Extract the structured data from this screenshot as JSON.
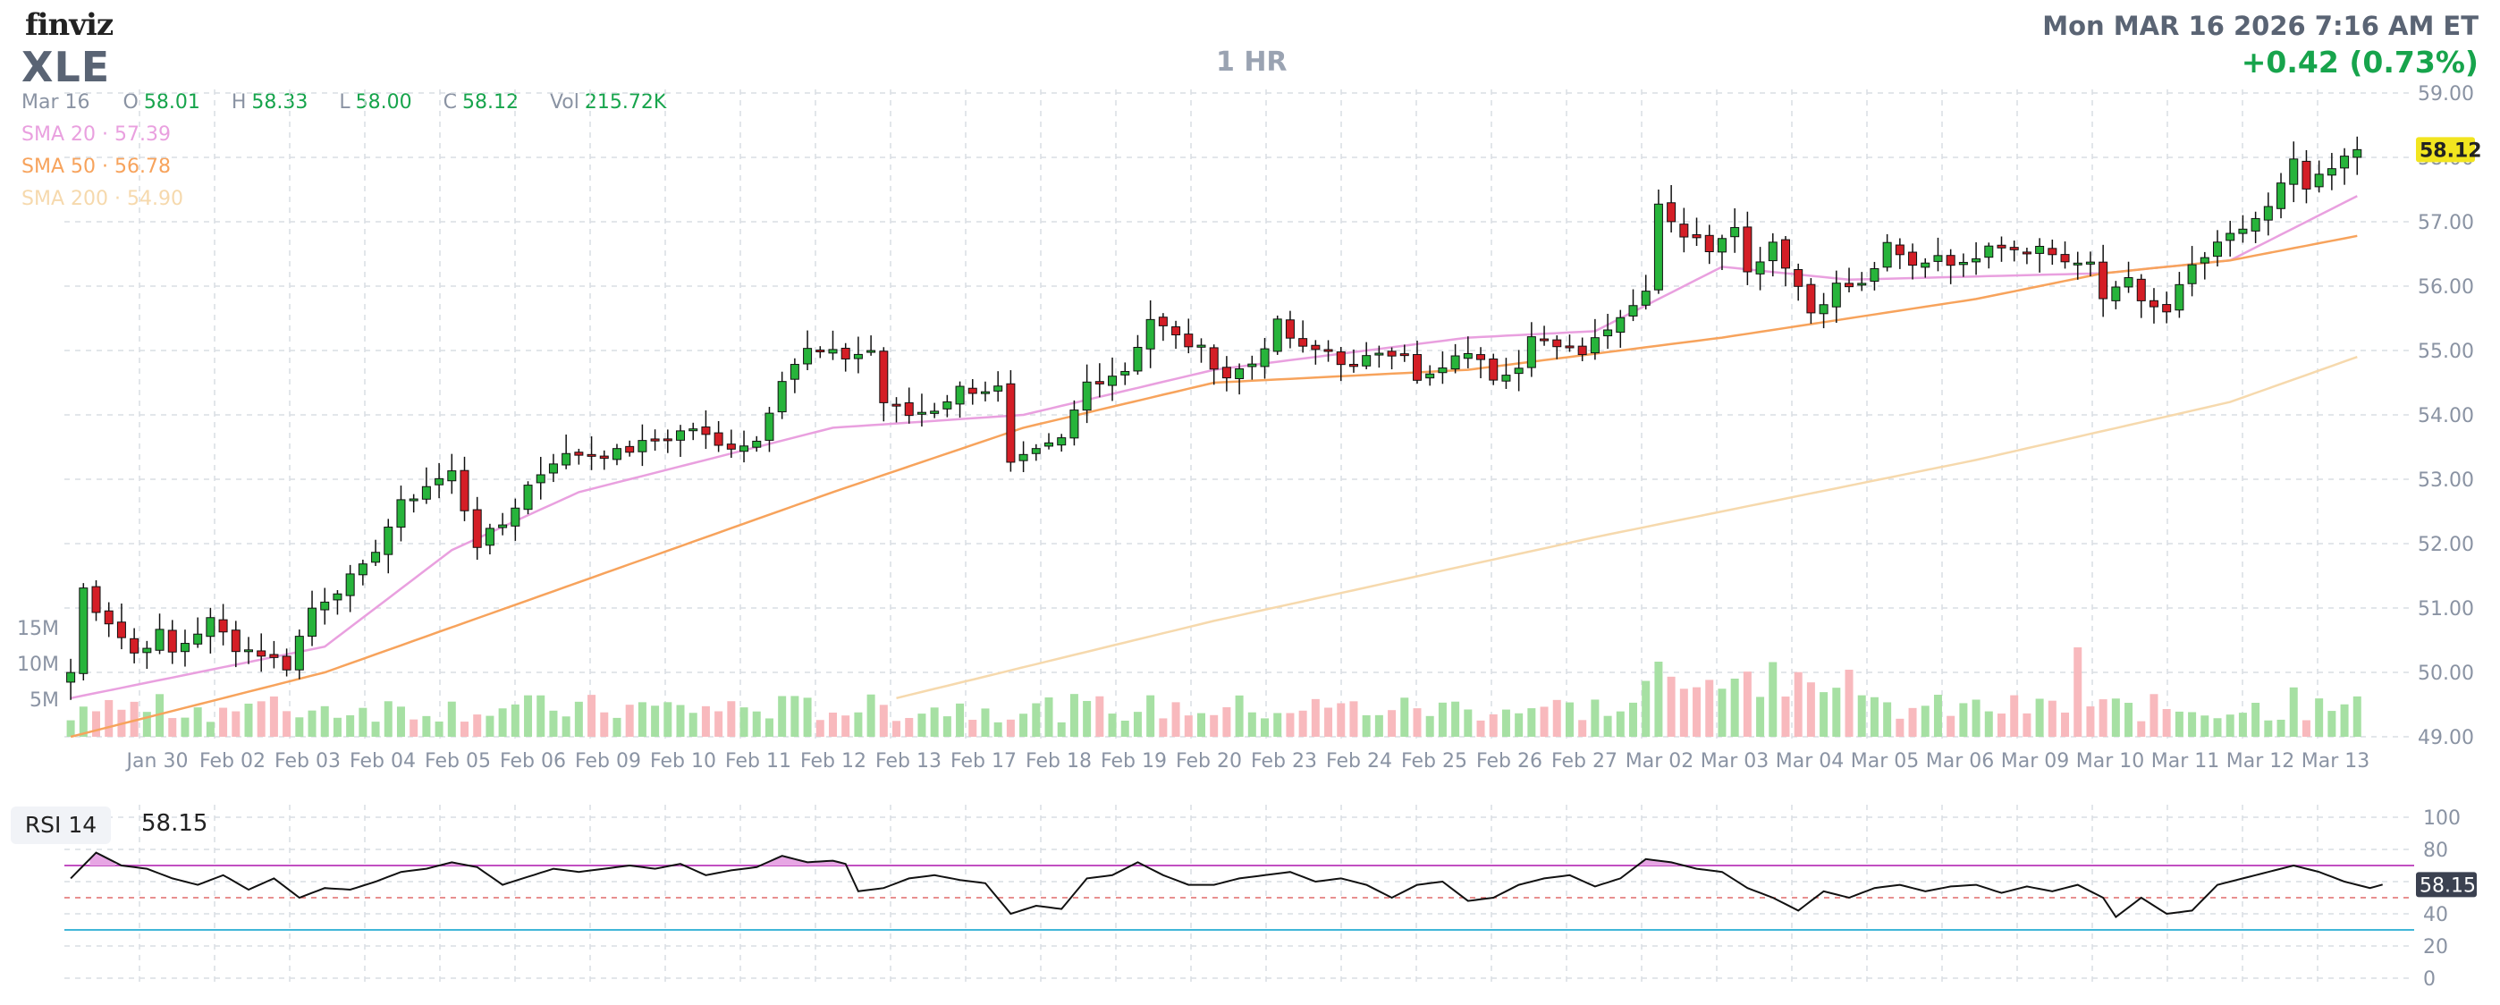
{
  "header": {
    "logo": "finviz",
    "ticker": "XLE",
    "timeframe": "1 HR",
    "datetime": "Mon MAR 16 2026 7:16 AM ET",
    "change": "+0.42 (0.73%)"
  },
  "ohlc": {
    "date": "Mar 16",
    "open_label": "O",
    "open": "58.01",
    "high_label": "H",
    "high": "58.33",
    "low_label": "L",
    "low": "58.00",
    "close_label": "C",
    "close": "58.12",
    "vol_label": "Vol",
    "vol": "215.72K"
  },
  "sma": [
    {
      "label": "SMA 20",
      "value": "57.39",
      "color": "#e9a0df"
    },
    {
      "label": "SMA 50",
      "value": "56.78",
      "color": "#f7a35c"
    },
    {
      "label": "SMA 200",
      "value": "54.90",
      "color": "#f6d9ad"
    }
  ],
  "rsi": {
    "label": "RSI 14",
    "value": "58.15"
  },
  "colors": {
    "up": "#27b43b",
    "down": "#d41e26",
    "vol_up": "#a6e0a3",
    "vol_down": "#f8b9bd",
    "grid": "#d9dde3",
    "axis_text": "#8a93a3",
    "rsi_line": "#111111",
    "rsi_overbought": "#c14fc1",
    "rsi_oversold": "#41b6d8",
    "last_price_bg": "#f2e51f"
  },
  "chart_data": [
    {
      "type": "candlestick",
      "title": "XLE",
      "ylim": [
        49.0,
        59.0
      ],
      "y_ticks": [
        "49.00",
        "50.00",
        "51.00",
        "52.00",
        "53.00",
        "54.00",
        "55.00",
        "56.00",
        "57.00",
        "58.00",
        "59.00"
      ],
      "x_labels": [
        "Jan 30",
        "Feb 02",
        "Feb 03",
        "Feb 04",
        "Feb 05",
        "Feb 06",
        "Feb 09",
        "Feb 10",
        "Feb 11",
        "Feb 12",
        "Feb 13",
        "Feb 17",
        "Feb 18",
        "Feb 19",
        "Feb 20",
        "Feb 23",
        "Feb 24",
        "Feb 25",
        "Feb 26",
        "Feb 27",
        "Mar 02",
        "Mar 03",
        "Mar 04",
        "Mar 05",
        "Mar 06",
        "Mar 09",
        "Mar 10",
        "Mar 11",
        "Mar 12",
        "Mar 13"
      ],
      "last_price": "58.12",
      "close_path": [
        [
          0,
          50.0
        ],
        [
          1,
          51.3
        ],
        [
          2,
          51.0
        ],
        [
          3,
          50.8
        ],
        [
          5,
          50.3
        ],
        [
          7,
          50.6
        ],
        [
          8,
          50.3
        ],
        [
          11,
          50.8
        ],
        [
          13,
          50.4
        ],
        [
          15,
          50.3
        ],
        [
          17,
          50.1
        ],
        [
          19,
          51.0
        ],
        [
          21,
          51.3
        ],
        [
          23,
          51.6
        ],
        [
          26,
          52.6
        ],
        [
          28,
          52.9
        ],
        [
          30,
          53.1
        ],
        [
          32,
          52.0
        ],
        [
          34,
          52.3
        ],
        [
          36,
          52.9
        ],
        [
          38,
          53.3
        ],
        [
          40,
          53.4
        ],
        [
          43,
          53.4
        ],
        [
          46,
          53.6
        ],
        [
          49,
          53.8
        ],
        [
          51,
          53.5
        ],
        [
          54,
          53.6
        ],
        [
          56,
          54.6
        ],
        [
          58,
          55.0
        ],
        [
          61,
          54.9
        ],
        [
          63,
          55.0
        ],
        [
          64,
          54.2
        ],
        [
          66,
          54.0
        ],
        [
          68,
          54.1
        ],
        [
          70,
          54.4
        ],
        [
          73,
          54.4
        ],
        [
          74,
          53.2
        ],
        [
          76,
          53.4
        ],
        [
          78,
          53.6
        ],
        [
          80,
          54.5
        ],
        [
          83,
          54.7
        ],
        [
          85,
          55.5
        ],
        [
          87,
          55.2
        ],
        [
          89,
          55.0
        ],
        [
          91,
          54.6
        ],
        [
          93,
          54.8
        ],
        [
          95,
          55.4
        ],
        [
          97,
          55.0
        ],
        [
          99,
          55.0
        ],
        [
          101,
          54.7
        ],
        [
          103,
          55.0
        ],
        [
          105,
          55.0
        ],
        [
          106,
          54.5
        ],
        [
          108,
          54.7
        ],
        [
          110,
          55.0
        ],
        [
          112,
          54.6
        ],
        [
          114,
          54.8
        ],
        [
          115,
          55.3
        ],
        [
          117,
          55.0
        ],
        [
          119,
          55.0
        ],
        [
          121,
          55.4
        ],
        [
          123,
          55.7
        ],
        [
          124,
          56.0
        ],
        [
          125,
          57.3
        ],
        [
          127,
          56.8
        ],
        [
          129,
          56.6
        ],
        [
          131,
          57.0
        ],
        [
          132,
          56.2
        ],
        [
          134,
          56.7
        ],
        [
          136,
          56.0
        ],
        [
          137,
          55.6
        ],
        [
          139,
          56.0
        ],
        [
          141,
          56.0
        ],
        [
          143,
          56.6
        ],
        [
          145,
          56.3
        ],
        [
          147,
          56.5
        ],
        [
          149,
          56.3
        ],
        [
          151,
          56.7
        ],
        [
          153,
          56.6
        ],
        [
          155,
          56.6
        ],
        [
          157,
          56.4
        ],
        [
          159,
          56.3
        ],
        [
          160,
          55.8
        ],
        [
          162,
          56.2
        ],
        [
          163,
          55.7
        ],
        [
          165,
          55.6
        ],
        [
          167,
          56.3
        ],
        [
          169,
          56.6
        ],
        [
          171,
          56.9
        ],
        [
          173,
          57.2
        ],
        [
          175,
          57.9
        ],
        [
          176,
          57.5
        ],
        [
          178,
          57.8
        ],
        [
          180,
          58.12
        ]
      ],
      "volume_axis": {
        "labels": [
          "5M",
          "10M",
          "15M"
        ],
        "values": [
          5000000,
          10000000,
          15000000
        ]
      },
      "sma_lines": [
        {
          "name": "SMA 20",
          "points": [
            [
              0,
              49.6
            ],
            [
              20,
              50.4
            ],
            [
              30,
              51.9
            ],
            [
              40,
              52.8
            ],
            [
              60,
              53.8
            ],
            [
              75,
              54.0
            ],
            [
              90,
              54.7
            ],
            [
              110,
              55.2
            ],
            [
              120,
              55.3
            ],
            [
              130,
              56.3
            ],
            [
              140,
              56.1
            ],
            [
              160,
              56.2
            ],
            [
              170,
              56.4
            ],
            [
              180,
              57.4
            ]
          ]
        },
        {
          "name": "SMA 50",
          "points": [
            [
              0,
              49.0
            ],
            [
              20,
              50.0
            ],
            [
              40,
              51.4
            ],
            [
              60,
              52.8
            ],
            [
              75,
              53.8
            ],
            [
              90,
              54.5
            ],
            [
              110,
              54.7
            ],
            [
              130,
              55.2
            ],
            [
              150,
              55.8
            ],
            [
              160,
              56.2
            ],
            [
              170,
              56.4
            ],
            [
              180,
              56.78
            ]
          ]
        },
        {
          "name": "SMA 200",
          "points": [
            [
              65,
              49.6
            ],
            [
              90,
              50.8
            ],
            [
              120,
              52.1
            ],
            [
              150,
              53.3
            ],
            [
              170,
              54.2
            ],
            [
              180,
              54.9
            ]
          ]
        }
      ]
    },
    {
      "type": "line",
      "title": "RSI 14",
      "ylim": [
        0,
        100
      ],
      "y_ticks": [
        "0",
        "20",
        "40",
        "60",
        "80",
        "100"
      ],
      "overbought": 70,
      "oversold": 30,
      "mid": 50,
      "last_value": "58.15",
      "values": [
        [
          0,
          62
        ],
        [
          2,
          78
        ],
        [
          4,
          70
        ],
        [
          6,
          68
        ],
        [
          8,
          62
        ],
        [
          10,
          58
        ],
        [
          12,
          64
        ],
        [
          14,
          55
        ],
        [
          16,
          62
        ],
        [
          18,
          50
        ],
        [
          20,
          56
        ],
        [
          22,
          55
        ],
        [
          24,
          60
        ],
        [
          26,
          66
        ],
        [
          28,
          68
        ],
        [
          30,
          72
        ],
        [
          32,
          69
        ],
        [
          34,
          58
        ],
        [
          36,
          63
        ],
        [
          38,
          68
        ],
        [
          40,
          66
        ],
        [
          42,
          68
        ],
        [
          44,
          70
        ],
        [
          46,
          68
        ],
        [
          48,
          71
        ],
        [
          50,
          64
        ],
        [
          52,
          67
        ],
        [
          54,
          69
        ],
        [
          56,
          76
        ],
        [
          58,
          72
        ],
        [
          60,
          73
        ],
        [
          61,
          71
        ],
        [
          62,
          54
        ],
        [
          64,
          56
        ],
        [
          66,
          62
        ],
        [
          68,
          64
        ],
        [
          70,
          61
        ],
        [
          72,
          59
        ],
        [
          74,
          40
        ],
        [
          76,
          45
        ],
        [
          78,
          43
        ],
        [
          80,
          62
        ],
        [
          82,
          64
        ],
        [
          84,
          72
        ],
        [
          86,
          64
        ],
        [
          88,
          58
        ],
        [
          90,
          58
        ],
        [
          92,
          62
        ],
        [
          94,
          64
        ],
        [
          96,
          66
        ],
        [
          98,
          60
        ],
        [
          100,
          62
        ],
        [
          102,
          58
        ],
        [
          104,
          50
        ],
        [
          106,
          58
        ],
        [
          108,
          60
        ],
        [
          110,
          48
        ],
        [
          112,
          50
        ],
        [
          114,
          58
        ],
        [
          116,
          62
        ],
        [
          118,
          64
        ],
        [
          120,
          57
        ],
        [
          122,
          62
        ],
        [
          124,
          74
        ],
        [
          126,
          72
        ],
        [
          128,
          68
        ],
        [
          130,
          66
        ],
        [
          132,
          56
        ],
        [
          134,
          50
        ],
        [
          136,
          42
        ],
        [
          138,
          54
        ],
        [
          140,
          50
        ],
        [
          142,
          56
        ],
        [
          144,
          58
        ],
        [
          146,
          54
        ],
        [
          148,
          57
        ],
        [
          150,
          58
        ],
        [
          152,
          53
        ],
        [
          154,
          57
        ],
        [
          156,
          54
        ],
        [
          158,
          58
        ],
        [
          160,
          50
        ],
        [
          161,
          38
        ],
        [
          163,
          50
        ],
        [
          165,
          40
        ],
        [
          167,
          42
        ],
        [
          169,
          58
        ],
        [
          171,
          62
        ],
        [
          173,
          66
        ],
        [
          175,
          70
        ],
        [
          177,
          66
        ],
        [
          179,
          60
        ],
        [
          181,
          56
        ],
        [
          182,
          58.15
        ]
      ]
    }
  ]
}
